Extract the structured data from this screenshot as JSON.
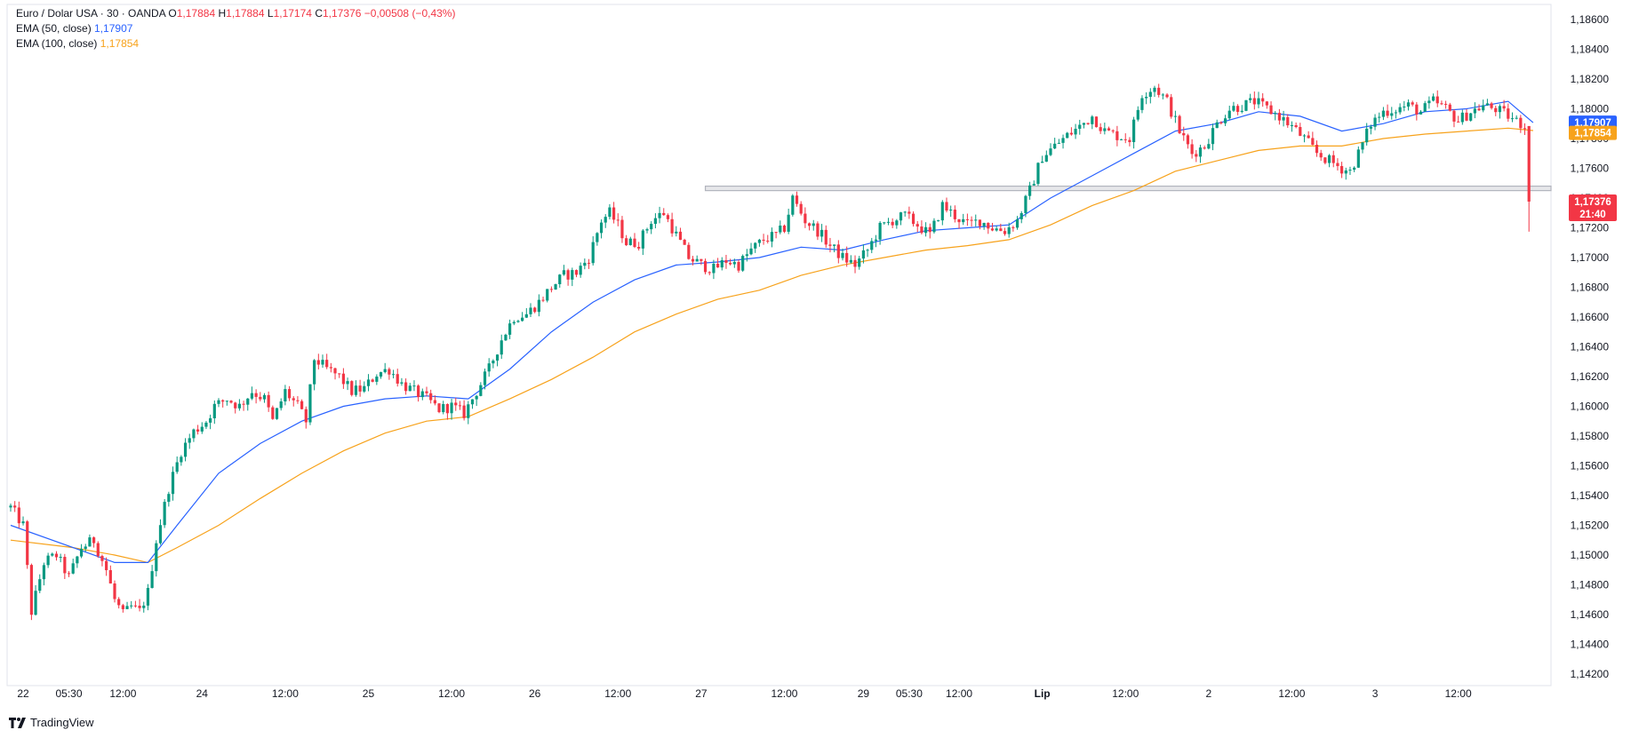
{
  "legend": {
    "symbol": "Euro / Dolar USA · 30 · OANDA",
    "o_label": "O",
    "o_value": "1,17884",
    "h_label": "H",
    "h_value": "1,17884",
    "l_label": "L",
    "l_value": "1,17174",
    "c_label": "C",
    "c_value": "1,17376",
    "change": "−0,00508 (−0,43%)",
    "ema50_label": "EMA (50, close)",
    "ema50_value": "1,17907",
    "ema100_label": "EMA (100, close)",
    "ema100_value": "1,17854"
  },
  "price_tags": {
    "ema50": "1,17907",
    "ema100": "1,17854",
    "last": "1,17376",
    "countdown": "21:40"
  },
  "brand": "TradingView",
  "colors": {
    "up": "#089981",
    "down": "#f23645",
    "ema50": "#2962ff",
    "ema100": "#f7a21b",
    "zone": "#b2b5be",
    "last_tag": "#f23645"
  },
  "chart_data": {
    "type": "candlestick",
    "ylim": [
      1.141,
      1.187
    ],
    "y_ticks": [
      "1,18600",
      "1,18400",
      "1,18200",
      "1,18000",
      "1,17800",
      "1,17600",
      "1,17400",
      "1,17200",
      "1,17000",
      "1,16800",
      "1,16600",
      "1,16400",
      "1,16200",
      "1,16000",
      "1,15800",
      "1,15600",
      "1,15400",
      "1,15200",
      "1,15000",
      "1,14800",
      "1,14600",
      "1,14400",
      "1,14200"
    ],
    "x_labels": [
      {
        "label": "22",
        "i": 3,
        "bold": false
      },
      {
        "label": "05:30",
        "i": 14,
        "bold": false
      },
      {
        "label": "12:00",
        "i": 27,
        "bold": false
      },
      {
        "label": "24",
        "i": 46,
        "bold": false
      },
      {
        "label": "12:00",
        "i": 66,
        "bold": false
      },
      {
        "label": "25",
        "i": 86,
        "bold": false
      },
      {
        "label": "12:00",
        "i": 106,
        "bold": false
      },
      {
        "label": "26",
        "i": 126,
        "bold": false
      },
      {
        "label": "12:00",
        "i": 146,
        "bold": false
      },
      {
        "label": "27",
        "i": 166,
        "bold": false
      },
      {
        "label": "12:00",
        "i": 186,
        "bold": false
      },
      {
        "label": "29",
        "i": 205,
        "bold": false
      },
      {
        "label": "05:30",
        "i": 216,
        "bold": false
      },
      {
        "label": "12:00",
        "i": 228,
        "bold": false
      },
      {
        "label": "Lip",
        "i": 248,
        "bold": true
      },
      {
        "label": "12:00",
        "i": 268,
        "bold": false
      },
      {
        "label": "2",
        "i": 288,
        "bold": false
      },
      {
        "label": "12:00",
        "i": 308,
        "bold": false
      },
      {
        "label": "3",
        "i": 328,
        "bold": false
      },
      {
        "label": "12:00",
        "i": 348,
        "bold": false
      }
    ],
    "support_zone": [
      1.1745,
      1.1748
    ],
    "anchors": [
      [
        0,
        1.1532
      ],
      [
        3,
        1.152
      ],
      [
        5,
        1.1462
      ],
      [
        8,
        1.1495
      ],
      [
        11,
        1.15
      ],
      [
        14,
        1.1485
      ],
      [
        17,
        1.1505
      ],
      [
        20,
        1.151
      ],
      [
        23,
        1.149
      ],
      [
        25,
        1.147
      ],
      [
        27,
        1.146
      ],
      [
        29,
        1.1465
      ],
      [
        31,
        1.1462
      ],
      [
        33,
        1.1475
      ],
      [
        35,
        1.151
      ],
      [
        38,
        1.1545
      ],
      [
        41,
        1.157
      ],
      [
        44,
        1.1583
      ],
      [
        47,
        1.159
      ],
      [
        49,
        1.16
      ],
      [
        52,
        1.1605
      ],
      [
        55,
        1.16
      ],
      [
        58,
        1.161
      ],
      [
        61,
        1.1605
      ],
      [
        63,
        1.159
      ],
      [
        66,
        1.161
      ],
      [
        69,
        1.16
      ],
      [
        71,
        1.159
      ],
      [
        73,
        1.1632
      ],
      [
        76,
        1.1625
      ],
      [
        79,
        1.162
      ],
      [
        82,
        1.161
      ],
      [
        85,
        1.1612
      ],
      [
        88,
        1.1622
      ],
      [
        91,
        1.1625
      ],
      [
        94,
        1.1615
      ],
      [
        97,
        1.161
      ],
      [
        100,
        1.1605
      ],
      [
        103,
        1.1598
      ],
      [
        106,
        1.16
      ],
      [
        109,
        1.1595
      ],
      [
        112,
        1.161
      ],
      [
        115,
        1.1625
      ],
      [
        118,
        1.1645
      ],
      [
        121,
        1.166
      ],
      [
        124,
        1.1662
      ],
      [
        127,
        1.167
      ],
      [
        130,
        1.168
      ],
      [
        133,
        1.1688
      ],
      [
        136,
        1.169
      ],
      [
        139,
        1.17
      ],
      [
        142,
        1.1725
      ],
      [
        144,
        1.173
      ],
      [
        146,
        1.1722
      ],
      [
        148,
        1.171
      ],
      [
        151,
        1.171
      ],
      [
        154,
        1.1725
      ],
      [
        157,
        1.173
      ],
      [
        160,
        1.1715
      ],
      [
        163,
        1.17
      ],
      [
        166,
        1.1695
      ],
      [
        169,
        1.1692
      ],
      [
        172,
        1.1698
      ],
      [
        175,
        1.1695
      ],
      [
        178,
        1.1705
      ],
      [
        181,
        1.1712
      ],
      [
        184,
        1.1715
      ],
      [
        186,
        1.172
      ],
      [
        188,
        1.174
      ],
      [
        191,
        1.1725
      ],
      [
        194,
        1.1718
      ],
      [
        197,
        1.1708
      ],
      [
        200,
        1.17
      ],
      [
        203,
        1.1695
      ],
      [
        206,
        1.1705
      ],
      [
        209,
        1.172
      ],
      [
        212,
        1.1725
      ],
      [
        215,
        1.1728
      ],
      [
        218,
        1.1722
      ],
      [
        221,
        1.1715
      ],
      [
        224,
        1.1735
      ],
      [
        227,
        1.1728
      ],
      [
        230,
        1.1722
      ],
      [
        233,
        1.1725
      ],
      [
        236,
        1.172
      ],
      [
        239,
        1.1718
      ],
      [
        242,
        1.1725
      ],
      [
        245,
        1.1745
      ],
      [
        248,
        1.1768
      ],
      [
        251,
        1.1775
      ],
      [
        254,
        1.1782
      ],
      [
        257,
        1.1788
      ],
      [
        260,
        1.1795
      ],
      [
        263,
        1.1785
      ],
      [
        266,
        1.1782
      ],
      [
        269,
        1.178
      ],
      [
        272,
        1.181
      ],
      [
        275,
        1.1815
      ],
      [
        278,
        1.1805
      ],
      [
        281,
        1.1785
      ],
      [
        284,
        1.177
      ],
      [
        287,
        1.1775
      ],
      [
        290,
        1.179
      ],
      [
        293,
        1.18
      ],
      [
        296,
        1.1802
      ],
      [
        299,
        1.1805
      ],
      [
        302,
        1.18
      ],
      [
        305,
        1.1795
      ],
      [
        308,
        1.1788
      ],
      [
        311,
        1.178
      ],
      [
        314,
        1.177
      ],
      [
        317,
        1.1765
      ],
      [
        320,
        1.176
      ],
      [
        322,
        1.1758
      ],
      [
        324,
        1.177
      ],
      [
        327,
        1.179
      ],
      [
        330,
        1.1798
      ],
      [
        333,
        1.18
      ],
      [
        336,
        1.1802
      ],
      [
        339,
        1.1798
      ],
      [
        342,
        1.1805
      ],
      [
        345,
        1.18
      ],
      [
        348,
        1.1792
      ],
      [
        351,
        1.1798
      ],
      [
        354,
        1.1802
      ],
      [
        357,
        1.18
      ],
      [
        360,
        1.1795
      ],
      [
        363,
        1.179
      ],
      [
        364,
        1.1788
      ]
    ],
    "last_candle": {
      "i": 365,
      "open": 1.17884,
      "high": 1.17884,
      "low": 1.17174,
      "close": 1.17376
    },
    "series": [
      {
        "name": "EMA (50, close)",
        "points": [
          [
            0,
            1.152
          ],
          [
            15,
            1.1505
          ],
          [
            25,
            1.1495
          ],
          [
            33,
            1.1495
          ],
          [
            40,
            1.152
          ],
          [
            50,
            1.1555
          ],
          [
            60,
            1.1575
          ],
          [
            70,
            1.159
          ],
          [
            80,
            1.16
          ],
          [
            90,
            1.1605
          ],
          [
            100,
            1.1607
          ],
          [
            110,
            1.1605
          ],
          [
            120,
            1.1625
          ],
          [
            130,
            1.165
          ],
          [
            140,
            1.167
          ],
          [
            150,
            1.1685
          ],
          [
            160,
            1.1695
          ],
          [
            170,
            1.1697
          ],
          [
            180,
            1.17
          ],
          [
            190,
            1.1707
          ],
          [
            200,
            1.1705
          ],
          [
            210,
            1.1712
          ],
          [
            220,
            1.1718
          ],
          [
            230,
            1.172
          ],
          [
            240,
            1.1722
          ],
          [
            250,
            1.174
          ],
          [
            260,
            1.1755
          ],
          [
            270,
            1.177
          ],
          [
            280,
            1.1785
          ],
          [
            290,
            1.179
          ],
          [
            300,
            1.1798
          ],
          [
            310,
            1.1795
          ],
          [
            320,
            1.1785
          ],
          [
            330,
            1.179
          ],
          [
            340,
            1.1798
          ],
          [
            350,
            1.18
          ],
          [
            360,
            1.1805
          ],
          [
            366,
            1.17907
          ]
        ]
      },
      {
        "name": "EMA (100, close)",
        "points": [
          [
            0,
            1.151
          ],
          [
            15,
            1.1505
          ],
          [
            25,
            1.15
          ],
          [
            33,
            1.1495
          ],
          [
            40,
            1.1505
          ],
          [
            50,
            1.152
          ],
          [
            60,
            1.1538
          ],
          [
            70,
            1.1555
          ],
          [
            80,
            1.157
          ],
          [
            90,
            1.1582
          ],
          [
            100,
            1.159
          ],
          [
            110,
            1.1593
          ],
          [
            120,
            1.1605
          ],
          [
            130,
            1.1618
          ],
          [
            140,
            1.1633
          ],
          [
            150,
            1.165
          ],
          [
            160,
            1.1662
          ],
          [
            170,
            1.1672
          ],
          [
            180,
            1.1678
          ],
          [
            190,
            1.1688
          ],
          [
            200,
            1.1695
          ],
          [
            210,
            1.17
          ],
          [
            220,
            1.1705
          ],
          [
            230,
            1.1708
          ],
          [
            240,
            1.1712
          ],
          [
            250,
            1.1722
          ],
          [
            260,
            1.1735
          ],
          [
            270,
            1.1745
          ],
          [
            280,
            1.1758
          ],
          [
            290,
            1.1765
          ],
          [
            300,
            1.1772
          ],
          [
            310,
            1.1775
          ],
          [
            320,
            1.1775
          ],
          [
            330,
            1.178
          ],
          [
            340,
            1.1783
          ],
          [
            350,
            1.1785
          ],
          [
            360,
            1.1787
          ],
          [
            366,
            1.17854
          ]
        ]
      }
    ]
  }
}
